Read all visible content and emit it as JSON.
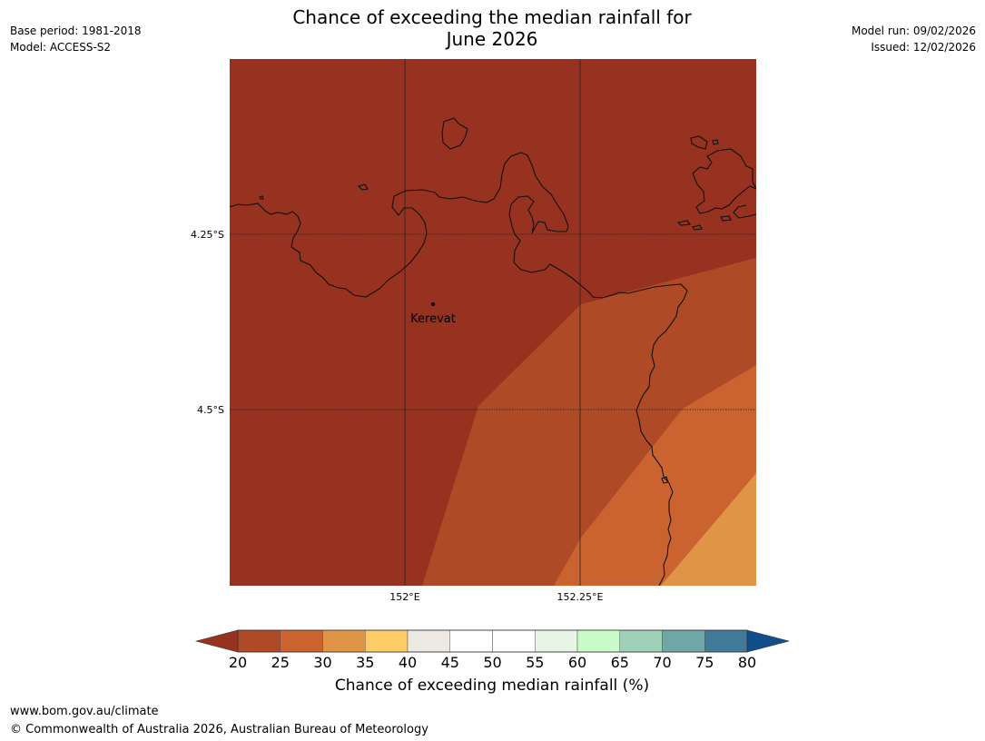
{
  "header": {
    "title_line1": "Chance of exceeding the median rainfall for",
    "title_line2": "June 2026",
    "base_period": "Base period: 1981-2018",
    "model": "Model: ACCESS-S2",
    "model_run": "Model run: 09/02/2026",
    "issued": "Issued: 12/02/2026"
  },
  "map": {
    "latitude_labels": [
      "4.25°S",
      "4.5°S"
    ],
    "longitude_labels": [
      "152°E",
      "152.25°E"
    ],
    "place_label": "Kerevat",
    "colors": {
      "below_20": "#96321f",
      "20_25": "#af4a27",
      "25_30": "#cb6331",
      "30_35": "#e09445",
      "coastline": "#111111",
      "gridline": "#222222"
    }
  },
  "colorbar": {
    "ticks": [
      "20",
      "25",
      "30",
      "35",
      "40",
      "45",
      "50",
      "55",
      "60",
      "65",
      "70",
      "75",
      "80"
    ],
    "colors": [
      "#af4a27",
      "#cb6331",
      "#e09445",
      "#fecc66",
      "#ece9e5",
      "#ffffff",
      "#ffffff",
      "#e8f5e6",
      "#c8fcc8",
      "#9fd1b8",
      "#70a6a6",
      "#427a99"
    ],
    "under_color": "#96321f",
    "over_color": "#104f8c",
    "label": "Chance of exceeding median rainfall (%)"
  },
  "footer": {
    "url": "www.bom.gov.au/climate",
    "copyright": "© Commonwealth of Australia 2026, Australian Bureau of Meteorology"
  }
}
